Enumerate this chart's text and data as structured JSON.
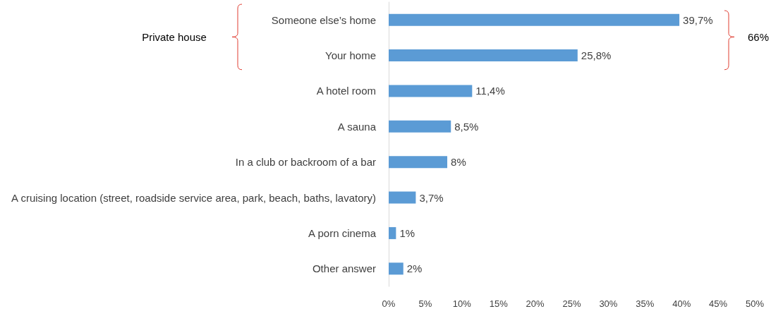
{
  "chart_data": {
    "type": "bar",
    "orientation": "horizontal",
    "categories": [
      "Someone else’s home",
      "Your home",
      "A hotel room",
      "A sauna",
      "In a club or backroom of a bar",
      "A cruising location (street, roadside service area, park, beach, baths, lavatory)",
      "A porn cinema",
      "Other answer"
    ],
    "values": [
      39.7,
      25.8,
      11.4,
      8.5,
      8,
      3.7,
      1,
      2
    ],
    "value_labels": [
      "39,7%",
      "25,8%",
      "11,4%",
      "8,5%",
      "8%",
      "3,7%",
      "1%",
      "2%"
    ],
    "color": "#5b9bd5",
    "xlim": [
      0,
      50
    ],
    "xticks": [
      {
        "value": 0,
        "label": "0%"
      },
      {
        "value": 5,
        "label": "5%"
      },
      {
        "value": 10,
        "label": "10%"
      },
      {
        "value": 15,
        "label": "15%"
      },
      {
        "value": 20,
        "label": "20%"
      },
      {
        "value": 25,
        "label": "25%"
      },
      {
        "value": 30,
        "label": "30%"
      },
      {
        "value": 35,
        "label": "35%"
      },
      {
        "value": 40,
        "label": "40%"
      },
      {
        "value": 45,
        "label": "45%"
      },
      {
        "value": 50,
        "label": "50%"
      }
    ],
    "annotations": [
      "Private house",
      "66%"
    ]
  }
}
